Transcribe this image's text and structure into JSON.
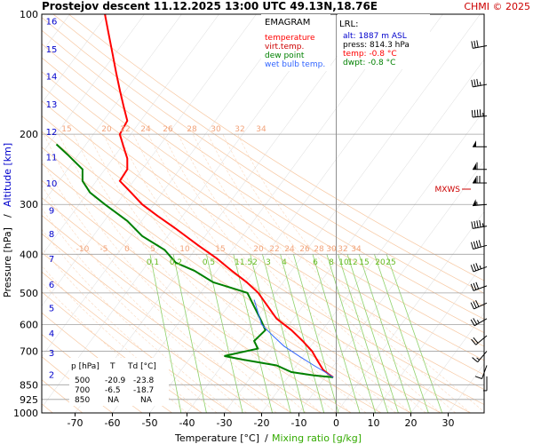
{
  "header": {
    "title": "Prostejov   descent   11.12.2025 13:00 UTC  49.13N,18.76E",
    "credit": "CHMI © 2025"
  },
  "legend": {
    "title": "EMAGRAM",
    "items": [
      {
        "label": "temperature",
        "color": "#ff0000"
      },
      {
        "label": "virt.temp.",
        "color": "#cc0000"
      },
      {
        "label": "dew point",
        "color": "#008000"
      },
      {
        "label": "wet bulb temp.",
        "color": "#3366ff"
      }
    ]
  },
  "lrl": {
    "title": "LRL:",
    "alt": "alt: 1887 m ASL",
    "press": "press: 814.3 hPa",
    "temp": "temp: -0.8 °C",
    "dwpt": "dwpt: -0.8 °C"
  },
  "table": {
    "headers": [
      "p [hPa]",
      "T",
      "Td [°C]"
    ],
    "rows": [
      [
        "500",
        "-20.9",
        "-23.8"
      ],
      [
        "700",
        "-6.5",
        "-18.7"
      ],
      [
        "850",
        "NA",
        "NA"
      ]
    ]
  },
  "mxws_label": "MXWS",
  "chart_data": {
    "type": "line",
    "xlabel": "Temperature [°C]",
    "xlabel_sep": "/",
    "xlabel2": "Mixing ratio [g/kg]",
    "ylabel": "Pressure [hPa]",
    "ylabel_sep": "/",
    "ylabel2": "Altitude [km]",
    "xlim": [
      -80,
      40
    ],
    "ylim": [
      1000,
      100
    ],
    "yscale": "log",
    "x_ticks": [
      -70,
      -60,
      -50,
      -40,
      -30,
      -20,
      -10,
      0,
      10,
      20,
      30
    ],
    "p_ticks": [
      100,
      200,
      300,
      400,
      500,
      600,
      700,
      850,
      925,
      1000
    ],
    "alt_ticks": [
      {
        "km": "2",
        "p": 800
      },
      {
        "km": "3",
        "p": 705
      },
      {
        "km": "4",
        "p": 630
      },
      {
        "km": "5",
        "p": 545
      },
      {
        "km": "6",
        "p": 475
      },
      {
        "km": "7",
        "p": 410
      },
      {
        "km": "8",
        "p": 355
      },
      {
        "km": "9",
        "p": 310
      },
      {
        "km": "10",
        "p": 265
      },
      {
        "km": "11",
        "p": 228
      },
      {
        "km": "12",
        "p": 197
      },
      {
        "km": "13",
        "p": 168
      },
      {
        "km": "14",
        "p": 143
      },
      {
        "km": "15",
        "p": 122
      },
      {
        "km": "16",
        "p": 104
      }
    ],
    "mixing_ratio_labels": [
      "0.1",
      "0.2",
      "0.5",
      "1",
      "1.5",
      "2",
      "3",
      "4",
      "6",
      "8",
      "10",
      "12",
      "15",
      "20",
      "25"
    ],
    "theta_labels_400": [
      "-10",
      "-5",
      "0",
      "5",
      "10",
      "15",
      "20",
      "22",
      "24",
      "26",
      "28",
      "30",
      "32",
      "34"
    ],
    "theta_labels_200": [
      "15",
      "20",
      "22",
      "24",
      "26",
      "28",
      "30",
      "32",
      "34"
    ],
    "series": [
      {
        "name": "temperature",
        "color": "#ff0000",
        "points": [
          [
            -0.8,
            814
          ],
          [
            -2,
            800
          ],
          [
            -3.5,
            780
          ],
          [
            -5,
            740
          ],
          [
            -6.5,
            700
          ],
          [
            -9,
            660
          ],
          [
            -12,
            620
          ],
          [
            -16,
            580
          ],
          [
            -20.9,
            500
          ],
          [
            -24,
            470
          ],
          [
            -28,
            440
          ],
          [
            -32,
            410
          ],
          [
            -37,
            380
          ],
          [
            -43,
            345
          ],
          [
            -48,
            320
          ],
          [
            -52,
            300
          ],
          [
            -55,
            280
          ],
          [
            -58,
            262
          ],
          [
            -56,
            245
          ],
          [
            -56,
            230
          ],
          [
            -57,
            215
          ],
          [
            -58,
            200
          ],
          [
            -56,
            185
          ],
          [
            -57,
            170
          ],
          [
            -58,
            155
          ],
          [
            -59,
            140
          ],
          [
            -60,
            125
          ],
          [
            -61,
            112
          ],
          [
            -62,
            100
          ]
        ]
      },
      {
        "name": "dew point",
        "color": "#008000",
        "points": [
          [
            -0.8,
            814
          ],
          [
            -6,
            805
          ],
          [
            -12,
            790
          ],
          [
            -16,
            760
          ],
          [
            -25,
            735
          ],
          [
            -30,
            720
          ],
          [
            -21,
            690
          ],
          [
            -22,
            660
          ],
          [
            -19,
            620
          ],
          [
            -20,
            590
          ],
          [
            -23.8,
            500
          ],
          [
            -33,
            470
          ],
          [
            -38,
            440
          ],
          [
            -43,
            420
          ],
          [
            -46,
            390
          ],
          [
            -52,
            360
          ],
          [
            -56,
            330
          ],
          [
            -62,
            300
          ],
          [
            -66,
            280
          ],
          [
            -68,
            262
          ],
          [
            -68,
            245
          ],
          [
            -72,
            225
          ],
          [
            -75,
            212
          ]
        ]
      },
      {
        "name": "wet bulb temp.",
        "color": "#3366ff",
        "points": [
          [
            -0.8,
            814
          ],
          [
            -3,
            790
          ],
          [
            -6,
            760
          ],
          [
            -10,
            720
          ],
          [
            -14,
            680
          ],
          [
            -17,
            640
          ],
          [
            -20,
            600
          ],
          [
            -22,
            520
          ]
        ]
      }
    ],
    "wind_barbs": [
      {
        "p": 120,
        "dir": 260,
        "kt": 30
      },
      {
        "p": 150,
        "dir": 260,
        "kt": 35
      },
      {
        "p": 180,
        "dir": 265,
        "kt": 45
      },
      {
        "p": 215,
        "dir": 270,
        "kt": 50
      },
      {
        "p": 245,
        "dir": 270,
        "kt": 60
      },
      {
        "p": 265,
        "dir": 270,
        "kt": 70
      },
      {
        "p": 300,
        "dir": 265,
        "kt": 55
      },
      {
        "p": 340,
        "dir": 260,
        "kt": 45
      },
      {
        "p": 380,
        "dir": 255,
        "kt": 40
      },
      {
        "p": 430,
        "dir": 250,
        "kt": 35
      },
      {
        "p": 480,
        "dir": 250,
        "kt": 30
      },
      {
        "p": 530,
        "dir": 245,
        "kt": 30
      },
      {
        "p": 580,
        "dir": 240,
        "kt": 25
      },
      {
        "p": 640,
        "dir": 230,
        "kt": 20
      },
      {
        "p": 700,
        "dir": 220,
        "kt": 15
      },
      {
        "p": 760,
        "dir": 200,
        "kt": 10
      },
      {
        "p": 810,
        "dir": 180,
        "kt": 5
      }
    ]
  }
}
